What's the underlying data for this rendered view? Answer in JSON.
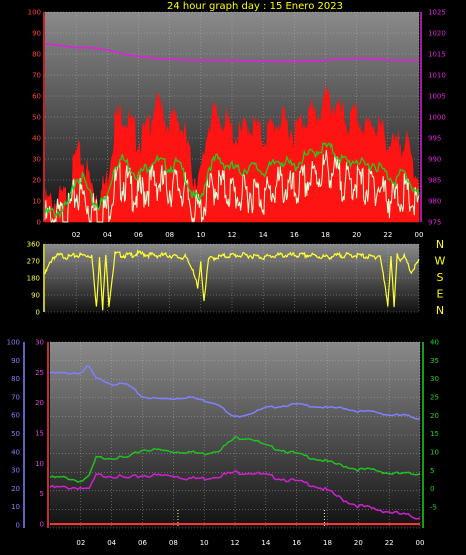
{
  "title": "24 hour graph day : 15 Enero 2023",
  "colors": {
    "gust": "#ff1414",
    "avg": "#22cc22",
    "min": "#d8ffd8",
    "pressure": "#e020e0",
    "direction": "#ffff33",
    "humidity": "#8080ff",
    "temp": "#d020d0",
    "dew": "#20c020",
    "rain": "#ff3333",
    "markers": "#ffff88"
  },
  "x_ticks": [
    "02",
    "04",
    "06",
    "08",
    "10",
    "12",
    "14",
    "16",
    "18",
    "20",
    "22",
    "00"
  ],
  "chart_data": [
    {
      "type": "line",
      "panel": "wind_pressure",
      "x_range_hours": [
        0,
        24
      ],
      "left_axis": {
        "ticks": [
          "100",
          "90",
          "80",
          "70",
          "60",
          "50",
          "40",
          "30",
          "20",
          "10",
          "0"
        ],
        "ylim": [
          0,
          100
        ]
      },
      "right_axis": {
        "ticks": [
          "1025",
          "1020",
          "1015",
          "1010",
          "1005",
          "1000",
          "995",
          "990",
          "985",
          "980",
          "975"
        ],
        "ylim": [
          975,
          1025
        ]
      },
      "series": [
        {
          "role": "gust",
          "axis": "left",
          "x": [
            0,
            1,
            1.5,
            2,
            2.5,
            3,
            3.5,
            4,
            4.5,
            5,
            5.5,
            6,
            6.5,
            7,
            7.5,
            8,
            8.5,
            9,
            9.5,
            10,
            10.5,
            11,
            11.5,
            12,
            12.5,
            13,
            13.5,
            14,
            14.5,
            15,
            15.5,
            16,
            16.5,
            17,
            17.5,
            18,
            18.5,
            19,
            19.5,
            20,
            20.5,
            21,
            21.5,
            22,
            22.5,
            23,
            23.5,
            24
          ],
          "values": [
            8,
            10,
            12,
            32,
            28,
            16,
            12,
            20,
            48,
            52,
            46,
            38,
            42,
            55,
            52,
            45,
            50,
            40,
            22,
            20,
            48,
            50,
            48,
            42,
            40,
            46,
            44,
            40,
            44,
            48,
            46,
            42,
            48,
            52,
            50,
            58,
            56,
            50,
            46,
            50,
            42,
            48,
            44,
            38,
            34,
            40,
            30,
            20
          ]
        },
        {
          "role": "average",
          "axis": "left",
          "x": [
            0,
            1,
            1.5,
            2,
            2.5,
            3,
            3.5,
            4,
            4.5,
            5,
            5.5,
            6,
            6.5,
            7,
            7.5,
            8,
            8.5,
            9,
            9.5,
            10,
            10.5,
            11,
            11.5,
            12,
            12.5,
            13,
            13.5,
            14,
            14.5,
            15,
            15.5,
            16,
            16.5,
            17,
            17.5,
            18,
            18.5,
            19,
            19.5,
            20,
            20.5,
            21,
            21.5,
            22,
            22.5,
            23,
            23.5,
            24
          ],
          "values": [
            4,
            5,
            8,
            22,
            20,
            10,
            8,
            12,
            28,
            30,
            26,
            22,
            26,
            30,
            28,
            26,
            28,
            22,
            12,
            10,
            26,
            30,
            28,
            26,
            24,
            26,
            26,
            24,
            26,
            30,
            28,
            26,
            30,
            32,
            34,
            36,
            34,
            30,
            28,
            30,
            26,
            28,
            26,
            22,
            20,
            24,
            18,
            12
          ]
        },
        {
          "role": "minimum",
          "axis": "left",
          "x": [
            0,
            1,
            1.5,
            2,
            2.5,
            3,
            3.5,
            4,
            4.5,
            5,
            5.5,
            6,
            6.5,
            7,
            7.5,
            8,
            8.5,
            9,
            9.5,
            10,
            10.5,
            11,
            11.5,
            12,
            12.5,
            13,
            13.5,
            14,
            14.5,
            15,
            15.5,
            16,
            16.5,
            17,
            17.5,
            18,
            18.5,
            19,
            19.5,
            20,
            20.5,
            21,
            21.5,
            22,
            22.5,
            23,
            23.5,
            24
          ],
          "values": [
            1,
            2,
            4,
            14,
            12,
            6,
            4,
            6,
            18,
            20,
            16,
            12,
            16,
            20,
            18,
            16,
            18,
            14,
            6,
            5,
            14,
            18,
            16,
            14,
            12,
            14,
            14,
            12,
            14,
            18,
            16,
            14,
            18,
            20,
            22,
            26,
            24,
            20,
            18,
            20,
            16,
            18,
            16,
            12,
            10,
            14,
            10,
            6
          ]
        },
        {
          "role": "pressure",
          "axis": "right",
          "x": [
            0,
            1,
            2,
            3,
            4,
            5,
            6,
            7,
            8,
            9,
            10,
            11,
            12,
            13,
            14,
            15,
            16,
            17,
            18,
            19,
            20,
            21,
            22,
            23,
            24
          ],
          "values": [
            1017.5,
            1017,
            1016.5,
            1016.5,
            1016,
            1015,
            1014.5,
            1014,
            1013.8,
            1013.6,
            1013.5,
            1013.5,
            1013.5,
            1013.4,
            1013.3,
            1013.2,
            1013.2,
            1013.3,
            1013.5,
            1013.8,
            1014,
            1013.9,
            1013.6,
            1013.5,
            1013.5
          ]
        }
      ]
    },
    {
      "type": "line",
      "panel": "wind_direction",
      "x_range_hours": [
        0,
        24
      ],
      "left_axis": {
        "ticks": [
          "360",
          "270",
          "180",
          "90",
          "0"
        ],
        "ylim": [
          0,
          360
        ]
      },
      "compass": [
        "N",
        "W",
        "S",
        "E",
        "N"
      ],
      "series": [
        {
          "role": "direction",
          "x": [
            0,
            0.5,
            1,
            1.5,
            2,
            2.5,
            3,
            3.3,
            3.5,
            3.7,
            3.9,
            4.1,
            4.5,
            5,
            5.5,
            6,
            7,
            8,
            8.5,
            9,
            9.3,
            9.5,
            9.8,
            10,
            10.2,
            10.5,
            11,
            12,
            13,
            14,
            15,
            16,
            17,
            18,
            19,
            20,
            21,
            21.5,
            22,
            22.2,
            22.4,
            22.6,
            22.8,
            23,
            23.5,
            24
          ],
          "values": [
            200,
            290,
            300,
            290,
            300,
            300,
            300,
            20,
            300,
            20,
            300,
            40,
            310,
            300,
            300,
            310,
            300,
            300,
            290,
            290,
            250,
            230,
            120,
            260,
            60,
            280,
            290,
            300,
            300,
            290,
            300,
            300,
            300,
            290,
            300,
            300,
            290,
            300,
            40,
            300,
            20,
            300,
            280,
            300,
            210,
            270
          ]
        }
      ]
    },
    {
      "type": "line",
      "panel": "temp_humidity",
      "x_range_hours": [
        0,
        24
      ],
      "axis_humidity": {
        "ticks": [
          "100",
          "90",
          "80",
          "70",
          "60",
          "50",
          "40",
          "30",
          "20",
          "10",
          "0"
        ],
        "ylim": [
          0,
          100
        ]
      },
      "axis_temperature": {
        "ticks": [
          "30",
          "25",
          "20",
          "15",
          "10",
          "5",
          "0"
        ],
        "ylim": [
          0,
          30
        ]
      },
      "axis_dewpoint": {
        "ticks": [
          "40",
          "35",
          "30",
          "25",
          "20",
          "15",
          "10",
          "5",
          "0",
          "-5"
        ],
        "ylim": [
          -5,
          40
        ]
      },
      "series": [
        {
          "role": "humidity",
          "axis": "humidity",
          "x": [
            0,
            1,
            1.5,
            2,
            2.5,
            3,
            3.5,
            4,
            5,
            6,
            7,
            8,
            9,
            10,
            11,
            11.5,
            12,
            12.5,
            13,
            14,
            15,
            16,
            17,
            18,
            19,
            20,
            21,
            22,
            23,
            24
          ],
          "values": [
            83,
            83,
            83,
            83,
            87,
            80,
            79,
            77,
            77,
            70,
            69,
            69,
            70,
            68,
            66,
            61,
            59,
            60,
            61,
            64,
            65,
            66,
            65,
            64,
            64,
            62,
            62,
            60,
            60,
            58
          ]
        },
        {
          "role": "temperature",
          "axis": "temperature",
          "x": [
            0,
            1,
            2,
            2.5,
            3,
            4,
            5,
            6,
            7,
            8,
            9,
            10,
            11,
            12,
            13,
            14,
            15,
            16,
            17,
            18,
            19,
            20,
            21,
            22,
            23,
            24
          ],
          "values": [
            6,
            6,
            6,
            5.5,
            8,
            8,
            7.5,
            8,
            8,
            8,
            7.5,
            7.5,
            8,
            8.5,
            8.5,
            8,
            7.5,
            7,
            6.5,
            5.5,
            4,
            3,
            2.5,
            2,
            1.5,
            1
          ]
        },
        {
          "role": "dewpoint",
          "axis": "dewpoint",
          "x": [
            0,
            1,
            2,
            2.5,
            3,
            4,
            5,
            6,
            7,
            8,
            9,
            10,
            11,
            12,
            13,
            14,
            15,
            16,
            17,
            18,
            19,
            20,
            21,
            22,
            23,
            24
          ],
          "values": [
            7,
            7,
            6,
            7,
            12,
            12,
            12,
            14,
            14,
            13.5,
            13.5,
            13,
            14,
            17,
            17,
            15,
            14,
            13,
            12,
            11,
            10,
            9,
            9,
            8,
            8,
            8
          ]
        },
        {
          "role": "rain",
          "axis": "temperature",
          "x": [
            0,
            24
          ],
          "values": [
            0,
            0
          ]
        }
      ],
      "markers_x": [
        8.3,
        17.8
      ]
    }
  ]
}
